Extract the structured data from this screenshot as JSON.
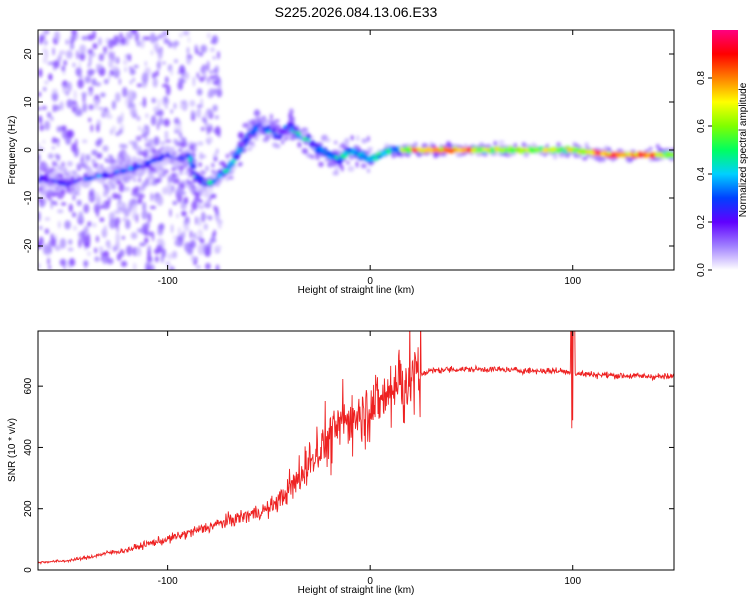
{
  "title": "S225.2026.084.13.06.E33",
  "chart_data": [
    {
      "type": "heatmap",
      "title": "S225.2026.084.13.06.E33",
      "xlabel": "Height of straight line (km)",
      "ylabel": "Frequency (Hz)",
      "xlim": [
        -164,
        150
      ],
      "ylim": [
        -25,
        25
      ],
      "xticks": [
        -100,
        0,
        100
      ],
      "yticks": [
        -20,
        -10,
        0,
        10,
        20
      ],
      "grid": false,
      "ridge": {
        "x": [
          -160,
          -150,
          -140,
          -130,
          -120,
          -110,
          -100,
          -95,
          -90,
          -85,
          -80,
          -70,
          -60,
          -55,
          -50,
          -45,
          -40,
          -35,
          -30,
          -25,
          -20,
          -15,
          -10,
          -5,
          0,
          5,
          10,
          15,
          20,
          40,
          60,
          80,
          100,
          120,
          140,
          150
        ],
        "y": [
          -6,
          -7,
          -6,
          -5,
          -4,
          -3,
          -1,
          -2,
          -1,
          -6,
          -7,
          -4,
          3,
          5,
          4,
          3,
          5,
          3,
          2,
          0,
          -1,
          -2,
          0,
          -1,
          -2,
          -1,
          0,
          0,
          0,
          0,
          0,
          0,
          0,
          -1,
          -1,
          -1
        ]
      },
      "colorbar": {
        "label": "Normalized spectral amplitude",
        "range": [
          0,
          1
        ],
        "ticks": [
          "0.0",
          "0.2",
          "0.4",
          "0.6",
          "0.8"
        ],
        "colors": [
          "#ffffff",
          "#a080ff",
          "#6000ff",
          "#0040ff",
          "#00d0ff",
          "#00ff60",
          "#80ff00",
          "#ffff00",
          "#ff8000",
          "#ff0000",
          "#ff0080"
        ]
      }
    },
    {
      "type": "line",
      "xlabel": "Height of straight line (km)",
      "ylabel": "SNR (10 * v/v)",
      "xlim": [
        -164,
        150
      ],
      "ylim": [
        0,
        780
      ],
      "xticks": [
        -100,
        0,
        100
      ],
      "yticks": [
        0,
        200,
        400,
        600
      ],
      "grid": false,
      "series": [
        {
          "name": "SNR",
          "color": "#ee2222",
          "x": [
            -164,
            -150,
            -140,
            -130,
            -120,
            -110,
            -100,
            -90,
            -80,
            -70,
            -60,
            -50,
            -45,
            -40,
            -35,
            -30,
            -25,
            -20,
            -15,
            -10,
            -5,
            0,
            5,
            10,
            15,
            20,
            25,
            30,
            40,
            60,
            80,
            95,
            100,
            105,
            120,
            150
          ],
          "y": [
            25,
            30,
            40,
            55,
            65,
            85,
            100,
            120,
            140,
            160,
            180,
            200,
            230,
            260,
            300,
            350,
            400,
            440,
            470,
            500,
            520,
            540,
            560,
            580,
            600,
            620,
            640,
            650,
            655,
            655,
            650,
            650,
            640,
            640,
            635,
            630
          ]
        }
      ]
    }
  ]
}
